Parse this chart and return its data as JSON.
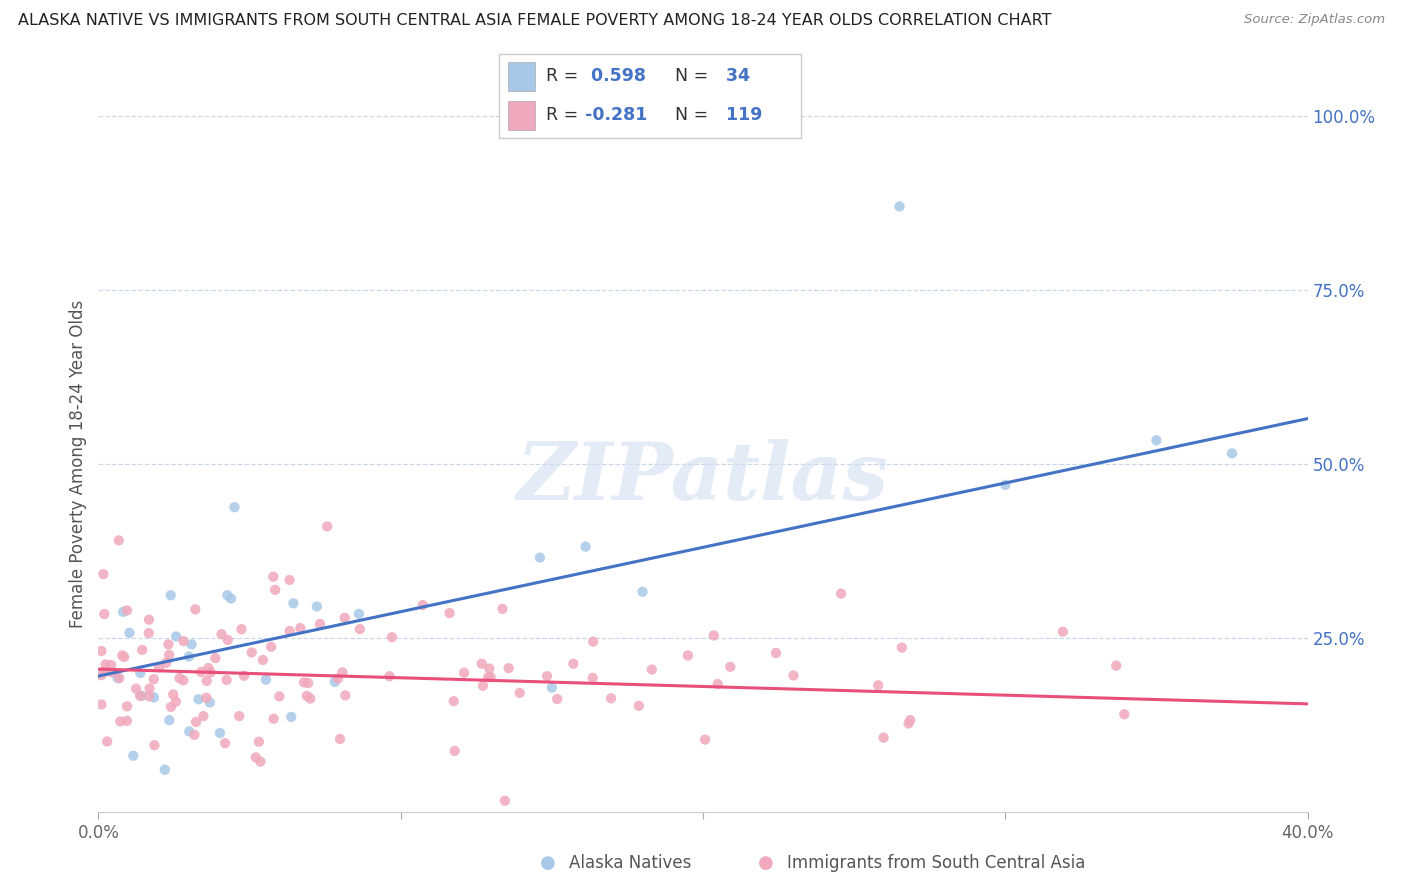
{
  "title": "ALASKA NATIVE VS IMMIGRANTS FROM SOUTH CENTRAL ASIA FEMALE POVERTY AMONG 18-24 YEAR OLDS CORRELATION CHART",
  "source": "Source: ZipAtlas.com",
  "ylabel": "Female Poverty Among 18-24 Year Olds",
  "xlim": [
    0.0,
    0.4
  ],
  "ylim": [
    0.0,
    1.0
  ],
  "blue_R": 0.598,
  "blue_N": 34,
  "pink_R": -0.281,
  "pink_N": 119,
  "blue_color": "#a8c8e8",
  "pink_color": "#f0a8bc",
  "line_blue": "#4472c4",
  "line_pink": "#e8507a",
  "watermark": "ZIPatlas",
  "legend_label_blue": "Alaska Natives",
  "legend_label_pink": "Immigrants from South Central Asia",
  "background_color": "#ffffff",
  "grid_color": "#c8d8e8",
  "right_axis_color": "#4472c4",
  "blue_line_x0": 0.0,
  "blue_line_y0": 0.195,
  "blue_line_x1": 0.4,
  "blue_line_y1": 0.565,
  "pink_line_x0": 0.0,
  "pink_line_y0": 0.205,
  "pink_line_x1": 0.4,
  "pink_line_y1": 0.155
}
